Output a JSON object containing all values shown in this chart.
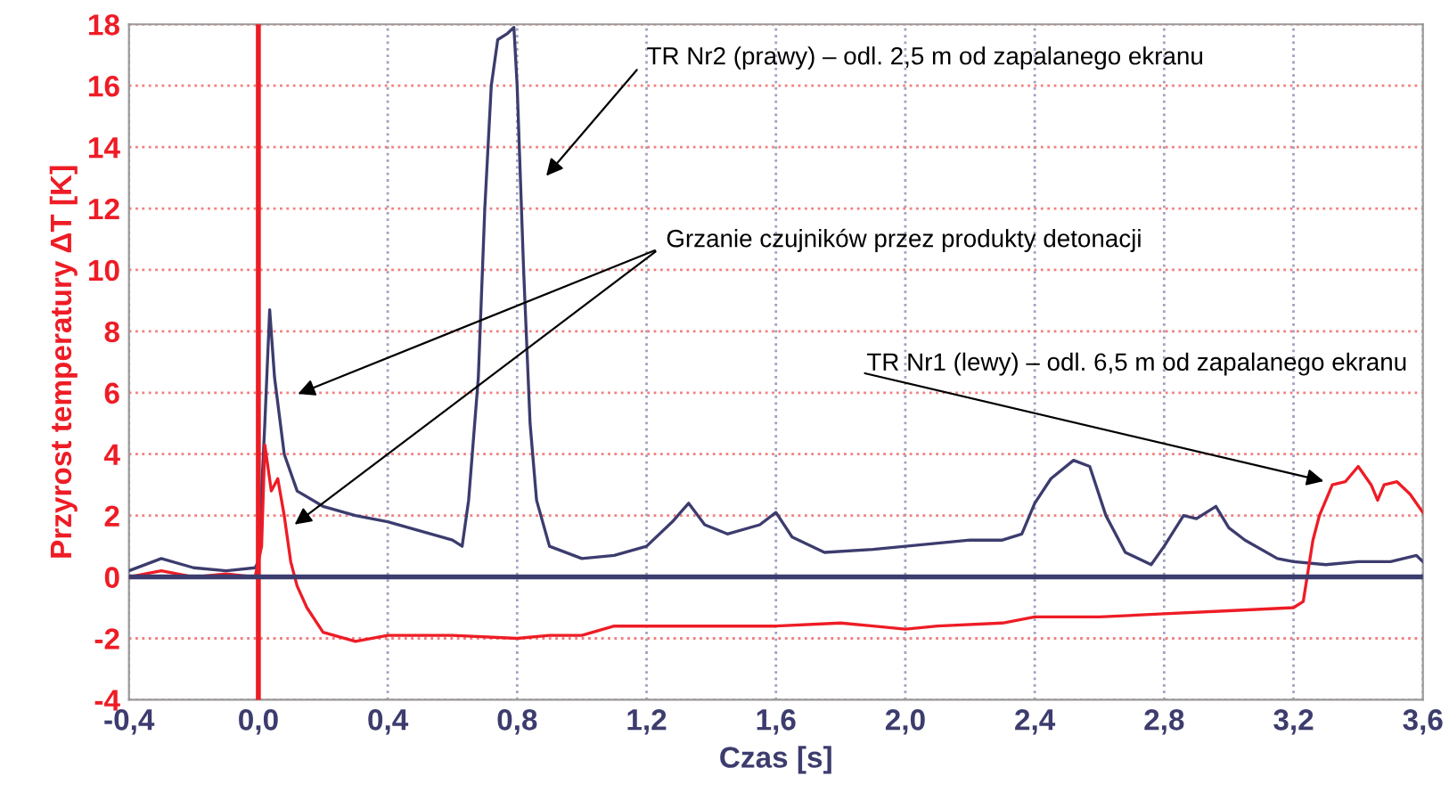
{
  "chart_data": {
    "type": "line",
    "xlabel": "Czas [s]",
    "ylabel": "Przyrost temperatury ΔT [K]",
    "xlim": [
      -0.4,
      3.6
    ],
    "xticks": [
      {
        "value": -0.4,
        "label": "-0,4"
      },
      {
        "value": 0.0,
        "label": "0,0"
      },
      {
        "value": 0.4,
        "label": "0,4"
      },
      {
        "value": 0.8,
        "label": "0,8"
      },
      {
        "value": 1.2,
        "label": "1,2"
      },
      {
        "value": 1.6,
        "label": "1,6"
      },
      {
        "value": 2.0,
        "label": "2,0"
      },
      {
        "value": 2.4,
        "label": "2,4"
      },
      {
        "value": 2.8,
        "label": "2,8"
      },
      {
        "value": 3.2,
        "label": "3,2"
      },
      {
        "value": 3.6,
        "label": "3,6"
      }
    ],
    "ylim": [
      -4,
      18
    ],
    "yticks": [
      -4,
      -2,
      0,
      2,
      4,
      6,
      8,
      10,
      12,
      14,
      16,
      18
    ],
    "grid": true,
    "marker": "none",
    "line_style": "solid",
    "series": [
      {
        "color": "#3c3c6e",
        "x": [
          -0.4,
          -0.3,
          -0.2,
          -0.1,
          -0.01,
          0.0,
          0.02,
          0.035,
          0.05,
          0.08,
          0.12,
          0.2,
          0.3,
          0.4,
          0.5,
          0.6,
          0.63,
          0.65,
          0.68,
          0.7,
          0.72,
          0.74,
          0.77,
          0.79,
          0.8,
          0.82,
          0.84,
          0.86,
          0.9,
          1.0,
          1.1,
          1.2,
          1.28,
          1.33,
          1.38,
          1.45,
          1.55,
          1.6,
          1.65,
          1.75,
          1.9,
          2.0,
          2.1,
          2.2,
          2.3,
          2.36,
          2.4,
          2.45,
          2.52,
          2.57,
          2.62,
          2.68,
          2.76,
          2.8,
          2.86,
          2.9,
          2.96,
          3.0,
          3.05,
          3.15,
          3.2,
          3.3,
          3.4,
          3.5,
          3.58,
          3.6
        ],
        "values": [
          0.2,
          0.6,
          0.3,
          0.2,
          0.3,
          0.5,
          5,
          8.7,
          6.5,
          4,
          2.8,
          2.3,
          2.0,
          1.8,
          1.5,
          1.2,
          1.0,
          2.5,
          6.5,
          12,
          16,
          17.5,
          17.7,
          17.9,
          16,
          10,
          5,
          2.5,
          1.0,
          0.6,
          0.7,
          1.0,
          1.8,
          2.4,
          1.7,
          1.4,
          1.7,
          2.1,
          1.3,
          0.8,
          0.9,
          1.0,
          1.1,
          1.2,
          1.2,
          1.4,
          2.4,
          3.2,
          3.8,
          3.6,
          2.0,
          0.8,
          0.4,
          1.0,
          2.0,
          1.9,
          2.3,
          1.6,
          1.2,
          0.6,
          0.5,
          0.4,
          0.5,
          0.5,
          0.7,
          0.5
        ]
      },
      {
        "color": "#ee1c25",
        "x": [
          -0.4,
          -0.3,
          -0.2,
          -0.1,
          -0.01,
          0.01,
          0.02,
          0.04,
          0.06,
          0.08,
          0.1,
          0.12,
          0.15,
          0.2,
          0.3,
          0.4,
          0.6,
          0.8,
          0.9,
          1.0,
          1.1,
          1.2,
          1.4,
          1.6,
          1.8,
          1.9,
          2.0,
          2.1,
          2.3,
          2.4,
          2.6,
          2.8,
          3.0,
          3.2,
          3.23,
          3.26,
          3.28,
          3.32,
          3.36,
          3.4,
          3.44,
          3.46,
          3.48,
          3.52,
          3.56,
          3.6
        ],
        "values": [
          0.0,
          0.2,
          0.0,
          0.1,
          0.0,
          1,
          4.3,
          2.8,
          3.2,
          2.0,
          0.5,
          -0.3,
          -1.0,
          -1.8,
          -2.1,
          -1.9,
          -1.9,
          -2.0,
          -1.9,
          -1.9,
          -1.6,
          -1.6,
          -1.6,
          -1.6,
          -1.5,
          -1.6,
          -1.7,
          -1.6,
          -1.5,
          -1.3,
          -1.3,
          -1.2,
          -1.1,
          -1.0,
          -0.8,
          1.2,
          2.0,
          3.0,
          3.1,
          3.6,
          3.0,
          2.5,
          3.0,
          3.1,
          2.7,
          2.1
        ]
      }
    ],
    "ref_lines": [
      {
        "axis": "x",
        "value": 0,
        "color": "#ee1c25"
      },
      {
        "axis": "y",
        "value": 0,
        "color": "#3c3c6e"
      }
    ],
    "annotations": [
      "TR Nr2 (prawy) – odl. 2,5 m od zapalanego ekranu",
      "Grzanie czujników przez produkty detonacji",
      "TR Nr1 (lewy) – odl. 6,5 m od zapalanego ekranu"
    ]
  }
}
